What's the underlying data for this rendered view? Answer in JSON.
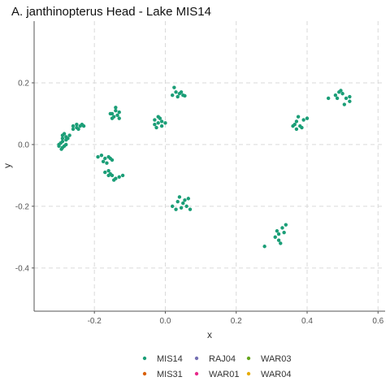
{
  "chart_data": {
    "type": "scatter",
    "title": "A. janthinopterus Head - Lake MIS14",
    "xlabel": "x",
    "ylabel": "y",
    "xlim": [
      -0.37,
      0.62
    ],
    "ylim": [
      -0.54,
      0.4
    ],
    "x_ticks": [
      -0.2,
      0.0,
      0.2,
      0.4,
      0.6
    ],
    "x_tick_labels": [
      "-0.2",
      "0.0",
      "0.2",
      "0.4",
      "0.6"
    ],
    "y_ticks": [
      -0.4,
      -0.2,
      0.0,
      0.2
    ],
    "y_tick_labels": [
      "-0.4",
      "-0.2",
      "0.0",
      "0.2"
    ],
    "grid": true,
    "legend_position": "bottom",
    "series": [
      {
        "name": "MIS14",
        "color": "#1b9e77",
        "points": [
          [
            -0.3,
            0.0
          ],
          [
            -0.29,
            -0.01
          ],
          [
            -0.295,
            0.005
          ],
          [
            -0.285,
            -0.005
          ],
          [
            -0.29,
            0.01
          ],
          [
            -0.3,
            -0.005
          ],
          [
            -0.28,
            0.0
          ],
          [
            -0.293,
            -0.015
          ],
          [
            -0.29,
            0.03
          ],
          [
            -0.28,
            0.025
          ],
          [
            -0.275,
            0.02
          ],
          [
            -0.285,
            0.035
          ],
          [
            -0.27,
            0.03
          ],
          [
            -0.29,
            0.02
          ],
          [
            -0.28,
            0.015
          ],
          [
            -0.26,
            0.06
          ],
          [
            -0.25,
            0.065
          ],
          [
            -0.24,
            0.06
          ],
          [
            -0.235,
            0.065
          ],
          [
            -0.25,
            0.055
          ],
          [
            -0.26,
            0.05
          ],
          [
            -0.245,
            0.05
          ],
          [
            -0.23,
            0.06
          ],
          [
            -0.15,
            0.1
          ],
          [
            -0.14,
            0.11
          ],
          [
            -0.13,
            0.105
          ],
          [
            -0.145,
            0.09
          ],
          [
            -0.135,
            0.095
          ],
          [
            -0.15,
            0.085
          ],
          [
            -0.14,
            0.12
          ],
          [
            -0.13,
            0.085
          ],
          [
            -0.155,
            0.1
          ],
          [
            -0.19,
            -0.04
          ],
          [
            -0.18,
            -0.035
          ],
          [
            -0.17,
            -0.045
          ],
          [
            -0.16,
            -0.04
          ],
          [
            -0.15,
            -0.05
          ],
          [
            -0.175,
            -0.055
          ],
          [
            -0.155,
            -0.045
          ],
          [
            -0.165,
            -0.06
          ],
          [
            -0.17,
            -0.09
          ],
          [
            -0.16,
            -0.085
          ],
          [
            -0.15,
            -0.1
          ],
          [
            -0.14,
            -0.11
          ],
          [
            -0.13,
            -0.105
          ],
          [
            -0.155,
            -0.095
          ],
          [
            -0.145,
            -0.115
          ],
          [
            -0.12,
            -0.1
          ],
          [
            -0.16,
            -0.1
          ],
          [
            -0.03,
            0.08
          ],
          [
            -0.02,
            0.07
          ],
          [
            -0.01,
            0.075
          ],
          [
            -0.02,
            0.09
          ],
          [
            -0.03,
            0.065
          ],
          [
            -0.01,
            0.06
          ],
          [
            -0.015,
            0.085
          ],
          [
            0.0,
            0.07
          ],
          [
            -0.025,
            0.055
          ],
          [
            0.02,
            0.16
          ],
          [
            0.03,
            0.17
          ],
          [
            0.04,
            0.165
          ],
          [
            0.05,
            0.16
          ],
          [
            0.035,
            0.155
          ],
          [
            0.025,
            0.185
          ],
          [
            0.045,
            0.17
          ],
          [
            0.055,
            0.158
          ],
          [
            0.02,
            -0.2
          ],
          [
            0.03,
            -0.21
          ],
          [
            0.04,
            -0.17
          ],
          [
            0.05,
            -0.19
          ],
          [
            0.06,
            -0.2
          ],
          [
            0.07,
            -0.21
          ],
          [
            0.055,
            -0.18
          ],
          [
            0.065,
            -0.175
          ],
          [
            0.045,
            -0.205
          ],
          [
            0.035,
            -0.185
          ],
          [
            0.28,
            -0.33
          ],
          [
            0.31,
            -0.3
          ],
          [
            0.32,
            -0.29
          ],
          [
            0.33,
            -0.27
          ],
          [
            0.34,
            -0.26
          ],
          [
            0.32,
            -0.31
          ],
          [
            0.315,
            -0.28
          ],
          [
            0.335,
            -0.285
          ],
          [
            0.325,
            -0.32
          ],
          [
            0.36,
            0.06
          ],
          [
            0.37,
            0.05
          ],
          [
            0.38,
            0.06
          ],
          [
            0.39,
            0.08
          ],
          [
            0.4,
            0.085
          ],
          [
            0.375,
            0.09
          ],
          [
            0.365,
            0.065
          ],
          [
            0.385,
            0.055
          ],
          [
            0.37,
            0.075
          ],
          [
            0.46,
            0.15
          ],
          [
            0.48,
            0.16
          ],
          [
            0.49,
            0.17
          ],
          [
            0.5,
            0.165
          ],
          [
            0.51,
            0.15
          ],
          [
            0.52,
            0.14
          ],
          [
            0.505,
            0.13
          ],
          [
            0.495,
            0.175
          ],
          [
            0.52,
            0.155
          ],
          [
            0.485,
            0.15
          ]
        ]
      },
      {
        "name": "MIS31",
        "color": "#d95f02",
        "points": []
      },
      {
        "name": "RAJ04",
        "color": "#7570b3",
        "points": []
      },
      {
        "name": "WAR01",
        "color": "#e7298a",
        "points": []
      },
      {
        "name": "WAR03",
        "color": "#66a61e",
        "points": []
      },
      {
        "name": "WAR04",
        "color": "#e6ab02",
        "points": []
      }
    ]
  }
}
